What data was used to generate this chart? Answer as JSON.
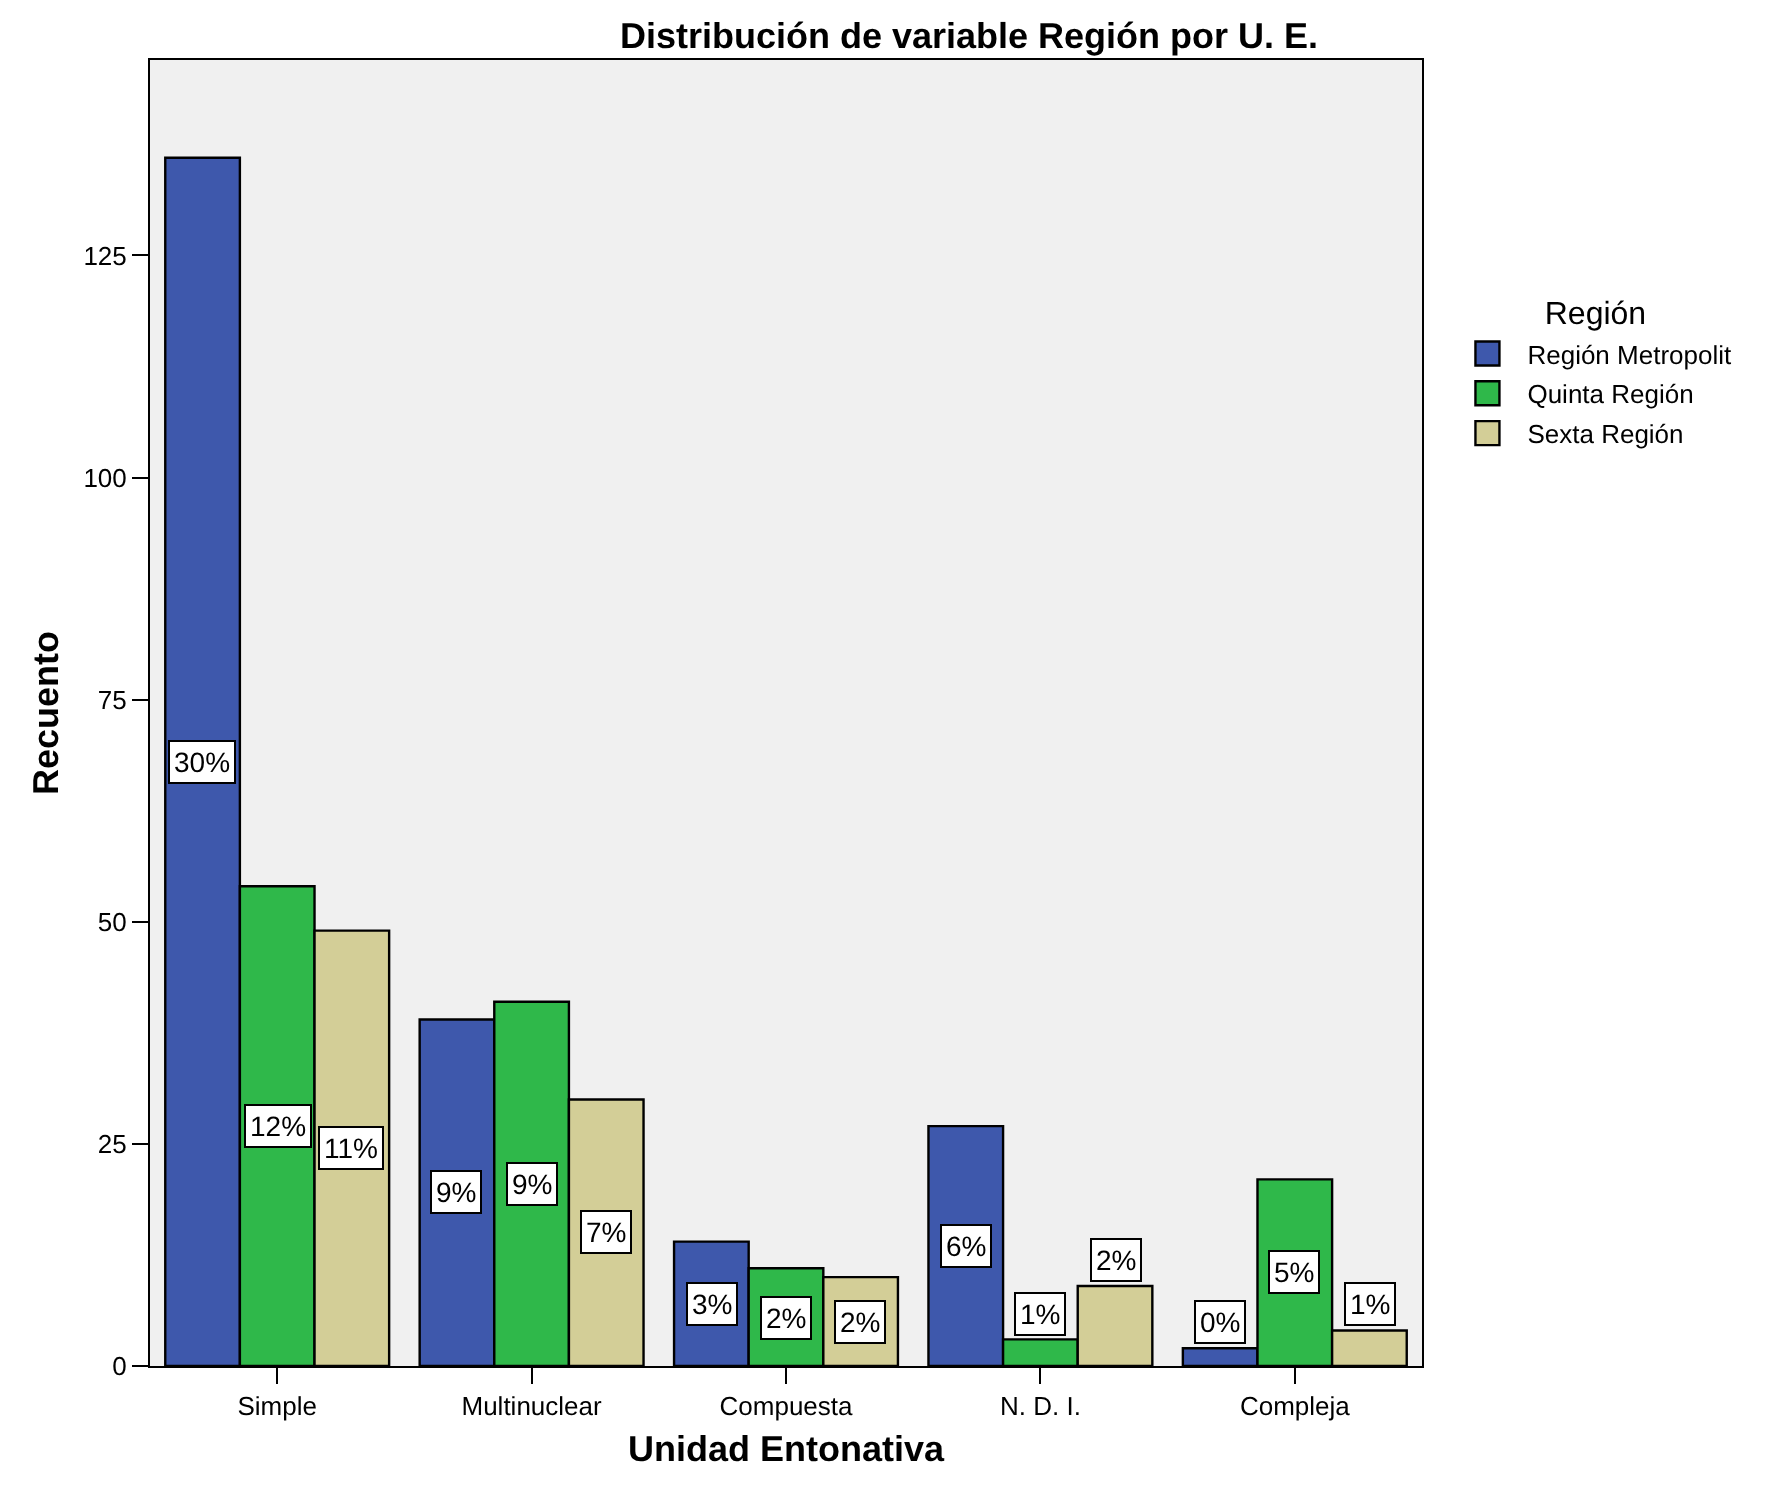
{
  "chart_data": {
    "type": "bar",
    "title": "Distribución de variable Región por U. E.",
    "xlabel": "Unidad Entonativa",
    "ylabel": "Recuento",
    "legend_title": "Región",
    "legend": "top right",
    "grid": false,
    "categories": [
      "Simple",
      "Multinuclear",
      "Compuesta",
      "N. D. I.",
      "Compleja"
    ],
    "series": [
      {
        "name": "Región Metropolit",
        "color": "#3e58ac",
        "values": [
          136,
          39,
          14,
          27,
          2
        ]
      },
      {
        "name": "Quinta Región",
        "color": "#2fb84a",
        "values": [
          54,
          41,
          11,
          3,
          21
        ]
      },
      {
        "name": "Sexta Región",
        "color": "#d3ce97",
        "values": [
          49,
          30,
          10,
          9,
          4
        ]
      }
    ],
    "annotations": [
      "30%",
      "12%",
      "11%",
      "9%",
      "9%",
      "7%",
      "3%",
      "2%",
      "2%",
      "6%",
      "1%",
      "2%",
      "0%",
      "5%",
      "1%"
    ],
    "ylim": [
      0,
      147
    ],
    "yticks": [
      0,
      25,
      50,
      75,
      100,
      125
    ]
  }
}
